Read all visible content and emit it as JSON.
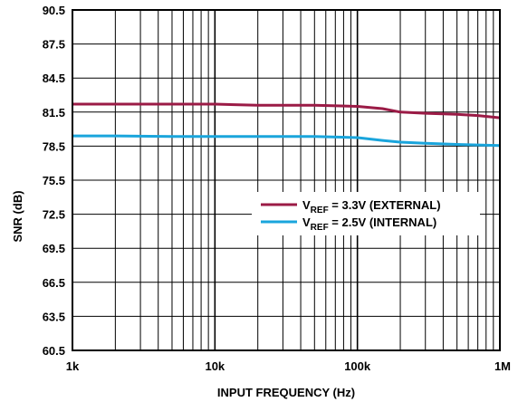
{
  "chart_data": {
    "type": "line",
    "x_scale": "log",
    "xlim": [
      1000,
      1000000
    ],
    "ylim": [
      60.5,
      90.5
    ],
    "xlabel": "INPUT FREQUENCY (Hz)",
    "ylabel": "SNR (dB)",
    "x_ticks": [
      1000,
      10000,
      100000,
      1000000
    ],
    "x_tick_labels": [
      "1k",
      "10k",
      "100k",
      "1M"
    ],
    "y_ticks": [
      60.5,
      63.5,
      66.5,
      69.5,
      72.5,
      75.5,
      78.5,
      81.5,
      84.5,
      87.5,
      90.5
    ],
    "y_tick_labels": [
      "60.5",
      "63.5",
      "66.5",
      "69.5",
      "72.5",
      "75.5",
      "78.5",
      "81.5",
      "84.5",
      "87.5",
      "90.5"
    ],
    "grid": true,
    "legend_position": "center-right",
    "series": [
      {
        "legend_main": "V",
        "legend_sub": "REF",
        "legend_rest": " = 3.3V (EXTERNAL)",
        "color": "#9b1b46",
        "x": [
          1000,
          2000,
          5000,
          10000,
          20000,
          50000,
          100000,
          150000,
          200000,
          300000,
          500000,
          700000,
          1000000
        ],
        "y": [
          82.2,
          82.2,
          82.2,
          82.2,
          82.1,
          82.1,
          82.0,
          81.8,
          81.5,
          81.4,
          81.3,
          81.2,
          81.0
        ]
      },
      {
        "legend_main": "V",
        "legend_sub": "REF",
        "legend_rest": " = 2.5V (INTERNAL)",
        "color": "#1aa5dc",
        "x": [
          1000,
          2000,
          5000,
          10000,
          20000,
          50000,
          100000,
          150000,
          200000,
          300000,
          500000,
          700000,
          1000000
        ],
        "y": [
          79.4,
          79.4,
          79.35,
          79.35,
          79.35,
          79.35,
          79.25,
          79.0,
          78.85,
          78.75,
          78.65,
          78.6,
          78.55
        ]
      }
    ]
  }
}
